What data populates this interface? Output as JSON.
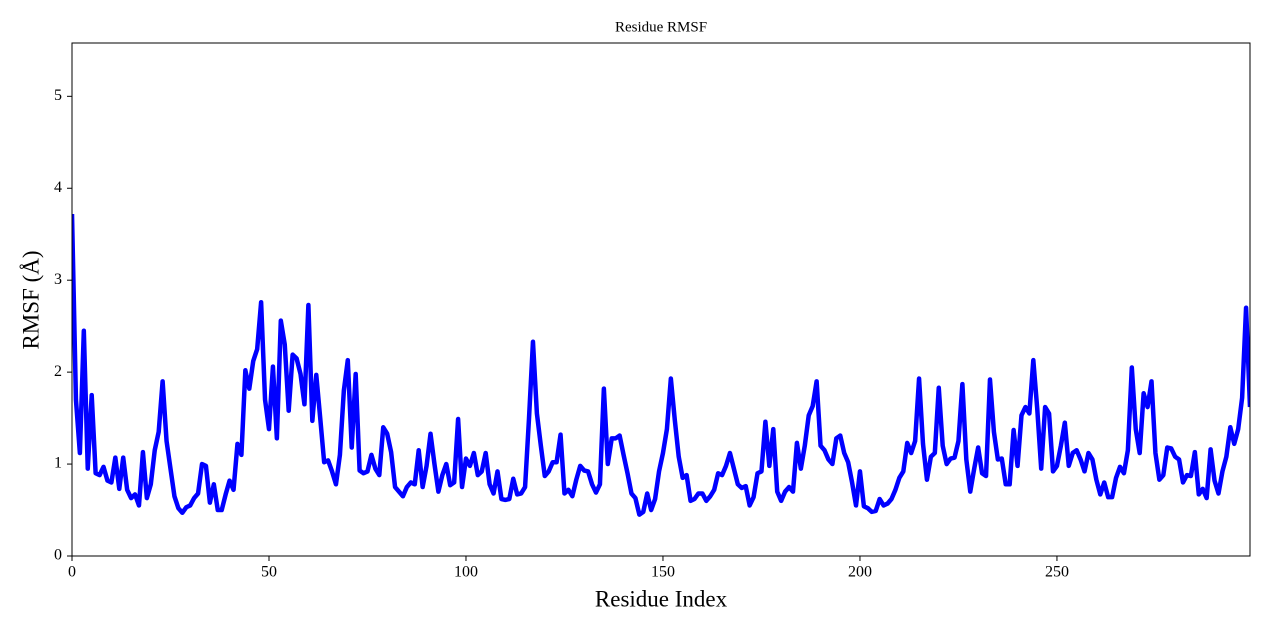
{
  "chart_data": {
    "type": "line",
    "title": "Residue RMSF",
    "x_label": "Residue Index",
    "y_label": "RMSF (Å)",
    "xlim": [
      0,
      299
    ],
    "ylim": [
      0,
      5.58
    ],
    "xticks": [
      0,
      50,
      100,
      150,
      200,
      250
    ],
    "yticks": [
      0,
      1,
      2,
      3,
      4,
      5
    ],
    "grid": false,
    "x": [
      0,
      1,
      2,
      3,
      4,
      5,
      6,
      7,
      8,
      9,
      10,
      11,
      12,
      13,
      14,
      15,
      16,
      17,
      18,
      19,
      20,
      21,
      22,
      23,
      24,
      25,
      26,
      27,
      28,
      29,
      30,
      31,
      32,
      33,
      34,
      35,
      36,
      37,
      38,
      39,
      40,
      41,
      42,
      43,
      44,
      45,
      46,
      47,
      48,
      49,
      50,
      51,
      52,
      53,
      54,
      55,
      56,
      57,
      58,
      59,
      60,
      61,
      62,
      63,
      64,
      65,
      66,
      67,
      68,
      69,
      70,
      71,
      72,
      73,
      74,
      75,
      76,
      77,
      78,
      79,
      80,
      81,
      82,
      83,
      84,
      85,
      86,
      87,
      88,
      89,
      90,
      91,
      92,
      93,
      94,
      95,
      96,
      97,
      98,
      99,
      100,
      101,
      102,
      103,
      104,
      105,
      106,
      107,
      108,
      109,
      110,
      111,
      112,
      113,
      114,
      115,
      116,
      117,
      118,
      119,
      120,
      121,
      122,
      123,
      124,
      125,
      126,
      127,
      128,
      129,
      130,
      131,
      132,
      133,
      134,
      135,
      136,
      137,
      138,
      139,
      140,
      141,
      142,
      143,
      144,
      145,
      146,
      147,
      148,
      149,
      150,
      151,
      152,
      153,
      154,
      155,
      156,
      157,
      158,
      159,
      160,
      161,
      162,
      163,
      164,
      165,
      166,
      167,
      168,
      169,
      170,
      171,
      172,
      173,
      174,
      175,
      176,
      177,
      178,
      179,
      180,
      181,
      182,
      183,
      184,
      185,
      186,
      187,
      188,
      189,
      190,
      191,
      192,
      193,
      194,
      195,
      196,
      197,
      198,
      199,
      200,
      201,
      202,
      203,
      204,
      205,
      206,
      207,
      208,
      209,
      210,
      211,
      212,
      213,
      214,
      215,
      216,
      217,
      218,
      219,
      220,
      221,
      222,
      223,
      224,
      225,
      226,
      227,
      228,
      229,
      230,
      231,
      232,
      233,
      234,
      235,
      236,
      237,
      238,
      239,
      240,
      241,
      242,
      243,
      244,
      245,
      246,
      247,
      248,
      249,
      250,
      251,
      252,
      253,
      254,
      255,
      256,
      257,
      258,
      259,
      260,
      261,
      262,
      263,
      264,
      265,
      266,
      267,
      268,
      269,
      270,
      271,
      272,
      273,
      274,
      275,
      276,
      277,
      278,
      279,
      280,
      281,
      282,
      283,
      284,
      285,
      286,
      287,
      288,
      289,
      290,
      291,
      292,
      293,
      294,
      295,
      296,
      297,
      298,
      299
    ],
    "series": [
      {
        "name": "RMSF",
        "color": "#0000ff",
        "values": [
          3.72,
          1.7,
          1.12,
          2.45,
          0.95,
          1.75,
          0.9,
          0.88,
          0.97,
          0.82,
          0.8,
          1.07,
          0.73,
          1.07,
          0.72,
          0.63,
          0.67,
          0.55,
          1.13,
          0.63,
          0.78,
          1.15,
          1.35,
          1.9,
          1.25,
          0.95,
          0.65,
          0.52,
          0.47,
          0.53,
          0.55,
          0.63,
          0.68,
          1.0,
          0.98,
          0.58,
          0.78,
          0.5,
          0.5,
          0.67,
          0.82,
          0.72,
          1.22,
          1.1,
          2.02,
          1.82,
          2.12,
          2.25,
          2.76,
          1.7,
          1.38,
          2.06,
          1.28,
          2.56,
          2.3,
          1.58,
          2.19,
          2.15,
          1.98,
          1.65,
          2.73,
          1.47,
          1.97,
          1.5,
          1.02,
          1.04,
          0.92,
          0.78,
          1.1,
          1.8,
          2.13,
          1.18,
          1.98,
          0.93,
          0.9,
          0.92,
          1.1,
          0.95,
          0.88,
          1.4,
          1.33,
          1.13,
          0.75,
          0.7,
          0.65,
          0.75,
          0.8,
          0.78,
          1.15,
          0.75,
          0.98,
          1.33,
          1.0,
          0.7,
          0.88,
          1.0,
          0.77,
          0.8,
          1.49,
          0.75,
          1.06,
          0.98,
          1.12,
          0.88,
          0.92,
          1.12,
          0.78,
          0.68,
          0.92,
          0.62,
          0.61,
          0.62,
          0.84,
          0.67,
          0.68,
          0.75,
          1.5,
          2.33,
          1.55,
          1.2,
          0.87,
          0.92,
          1.02,
          1.02,
          1.32,
          0.68,
          0.72,
          0.65,
          0.83,
          0.98,
          0.93,
          0.92,
          0.78,
          0.69,
          0.78,
          1.82,
          1.0,
          1.28,
          1.28,
          1.31,
          1.1,
          0.9,
          0.68,
          0.63,
          0.45,
          0.48,
          0.68,
          0.5,
          0.62,
          0.92,
          1.12,
          1.38,
          1.93,
          1.48,
          1.08,
          0.85,
          0.88,
          0.6,
          0.62,
          0.68,
          0.68,
          0.6,
          0.65,
          0.72,
          0.9,
          0.88,
          0.98,
          1.12,
          0.95,
          0.78,
          0.74,
          0.76,
          0.55,
          0.64,
          0.9,
          0.92,
          1.46,
          0.98,
          1.38,
          0.7,
          0.6,
          0.7,
          0.75,
          0.7,
          1.23,
          0.95,
          1.2,
          1.53,
          1.63,
          1.9,
          1.2,
          1.15,
          1.05,
          1.0,
          1.28,
          1.31,
          1.12,
          1.02,
          0.8,
          0.55,
          0.92,
          0.54,
          0.52,
          0.48,
          0.49,
          0.62,
          0.55,
          0.57,
          0.62,
          0.72,
          0.85,
          0.92,
          1.23,
          1.12,
          1.25,
          1.93,
          1.22,
          0.83,
          1.08,
          1.12,
          1.83,
          1.2,
          1.0,
          1.06,
          1.07,
          1.25,
          1.87,
          1.05,
          0.7,
          0.95,
          1.18,
          0.9,
          0.87,
          1.92,
          1.35,
          1.05,
          1.06,
          0.78,
          0.78,
          1.37,
          0.98,
          1.53,
          1.62,
          1.55,
          2.13,
          1.6,
          0.95,
          1.62,
          1.55,
          0.92,
          0.98,
          1.2,
          1.45,
          0.98,
          1.12,
          1.15,
          1.05,
          0.92,
          1.12,
          1.05,
          0.83,
          0.67,
          0.8,
          0.64,
          0.64,
          0.85,
          0.97,
          0.9,
          1.15,
          2.05,
          1.38,
          1.12,
          1.77,
          1.62,
          1.9,
          1.12,
          0.83,
          0.88,
          1.18,
          1.17,
          1.08,
          1.05,
          0.8,
          0.88,
          0.87,
          1.13,
          0.67,
          0.73,
          0.63,
          1.16,
          0.82,
          0.68,
          0.92,
          1.08,
          1.4,
          1.22,
          1.38,
          1.72,
          2.7,
          1.62
        ]
      }
    ]
  }
}
